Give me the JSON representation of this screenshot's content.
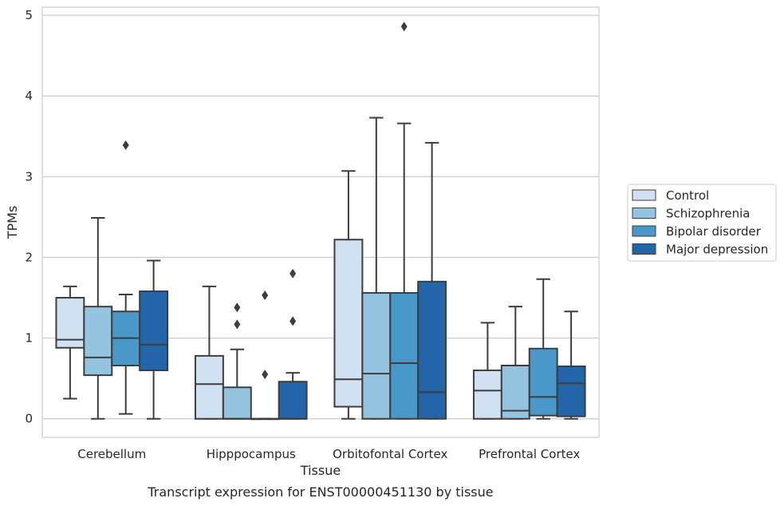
{
  "chart_data": {
    "type": "box",
    "xlabel": "Tissue",
    "ylabel": "TPMs",
    "caption": "Transcript expression for ENST00000451130 by tissue",
    "ylim": [
      -0.23,
      5.1
    ],
    "yticks": [
      0,
      1,
      2,
      3,
      4,
      5
    ],
    "grid": "horizontal",
    "legend_position": "right",
    "categories": [
      "Cerebellum",
      "Hipppocampus",
      "Orbitofontal Cortex",
      "Prefrontal Cortex"
    ],
    "series": [
      {
        "name": "Control",
        "color": "#d0e1f2",
        "boxes": [
          {
            "whislo": 0.25,
            "q1": 0.88,
            "med": 0.98,
            "q3": 1.5,
            "whishi": 1.64,
            "fliers": []
          },
          {
            "whislo": 0.0,
            "q1": 0.0,
            "med": 0.43,
            "q3": 0.78,
            "whishi": 1.64,
            "fliers": []
          },
          {
            "whislo": 0.0,
            "q1": 0.15,
            "med": 0.49,
            "q3": 2.22,
            "whishi": 3.07,
            "fliers": []
          },
          {
            "whislo": 0.0,
            "q1": 0.0,
            "med": 0.35,
            "q3": 0.6,
            "whishi": 1.19,
            "fliers": []
          }
        ]
      },
      {
        "name": "Schizophrenia",
        "color": "#94c4df",
        "boxes": [
          {
            "whislo": 0.0,
            "q1": 0.54,
            "med": 0.76,
            "q3": 1.39,
            "whishi": 2.49,
            "fliers": []
          },
          {
            "whislo": 0.0,
            "q1": 0.0,
            "med": 0.0,
            "q3": 0.39,
            "whishi": 0.86,
            "fliers": [
              1.17,
              1.38
            ]
          },
          {
            "whislo": 0.0,
            "q1": 0.0,
            "med": 0.56,
            "q3": 1.56,
            "whishi": 3.73,
            "fliers": []
          },
          {
            "whislo": 0.0,
            "q1": 0.0,
            "med": 0.1,
            "q3": 0.66,
            "whishi": 1.39,
            "fliers": []
          }
        ]
      },
      {
        "name": "Bipolar disorder",
        "color": "#4a98c9",
        "boxes": [
          {
            "whislo": 0.06,
            "q1": 0.66,
            "med": 1.0,
            "q3": 1.33,
            "whishi": 1.54,
            "fliers": [
              3.39
            ]
          },
          {
            "whislo": 0.0,
            "q1": 0.0,
            "med": 0.0,
            "q3": 0.0,
            "whishi": 0.0,
            "fliers": [
              0.55,
              1.53
            ]
          },
          {
            "whislo": 0.0,
            "q1": 0.0,
            "med": 0.69,
            "q3": 1.56,
            "whishi": 3.66,
            "fliers": [
              4.86
            ]
          },
          {
            "whislo": 0.0,
            "q1": 0.04,
            "med": 0.27,
            "q3": 0.87,
            "whishi": 1.73,
            "fliers": []
          }
        ]
      },
      {
        "name": "Major depression",
        "color": "#2464a9",
        "boxes": [
          {
            "whislo": 0.0,
            "q1": 0.6,
            "med": 0.92,
            "q3": 1.58,
            "whishi": 1.96,
            "fliers": []
          },
          {
            "whislo": 0.0,
            "q1": 0.0,
            "med": 0.0,
            "q3": 0.46,
            "whishi": 0.57,
            "fliers": [
              1.21,
              1.8
            ]
          },
          {
            "whislo": 0.0,
            "q1": 0.0,
            "med": 0.33,
            "q3": 1.7,
            "whishi": 3.42,
            "fliers": []
          },
          {
            "whislo": 0.0,
            "q1": 0.03,
            "med": 0.44,
            "q3": 0.65,
            "whishi": 1.33,
            "fliers": []
          }
        ]
      }
    ]
  }
}
